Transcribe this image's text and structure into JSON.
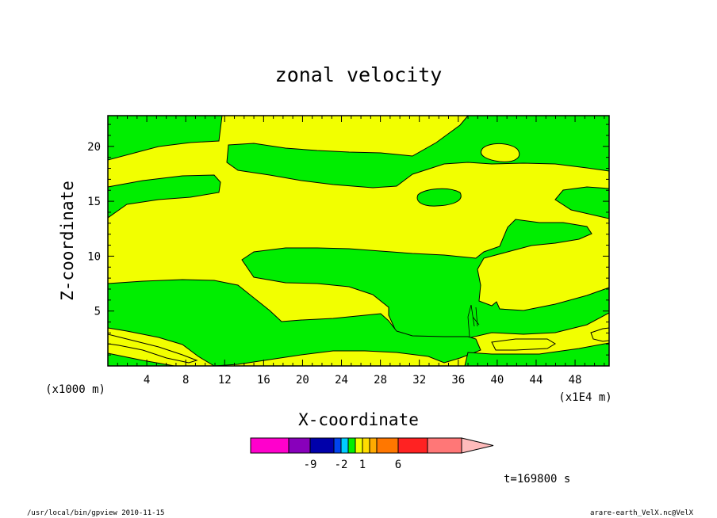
{
  "chart_data": {
    "type": "contour",
    "title": "zonal velocity",
    "xlabel": "X-coordinate",
    "ylabel": "Z-coordinate",
    "xunit_left": "(x1000 m)",
    "xunit_right": "(x1E4 m)",
    "xlim": [
      0,
      51.5
    ],
    "ylim": [
      0,
      22.8
    ],
    "x_ticks": [
      4,
      8,
      12,
      16,
      20,
      24,
      28,
      32,
      36,
      40,
      44,
      48
    ],
    "y_ticks": [
      5,
      10,
      15,
      20
    ],
    "colors": {
      "positive_region": "#f2ff00",
      "negative_region": "#00ee00"
    },
    "colorbar": {
      "colors": [
        "#ff00cc",
        "#8800bb",
        "#0000aa",
        "#0044ee",
        "#00ccff",
        "#00ee00",
        "#f2ff00",
        "#ffdd00",
        "#ffaa00",
        "#ff7700",
        "#ff2222",
        "#ff7777",
        "#ffbbbb"
      ],
      "tick_labels": [
        "-9",
        "-2",
        "1",
        "6"
      ]
    },
    "time_label": "t=169800 s",
    "footer_left": "/usr/local/bin/gpview  2010-11-15",
    "footer_right": "arare-earth_VelX.nc@VelX"
  }
}
